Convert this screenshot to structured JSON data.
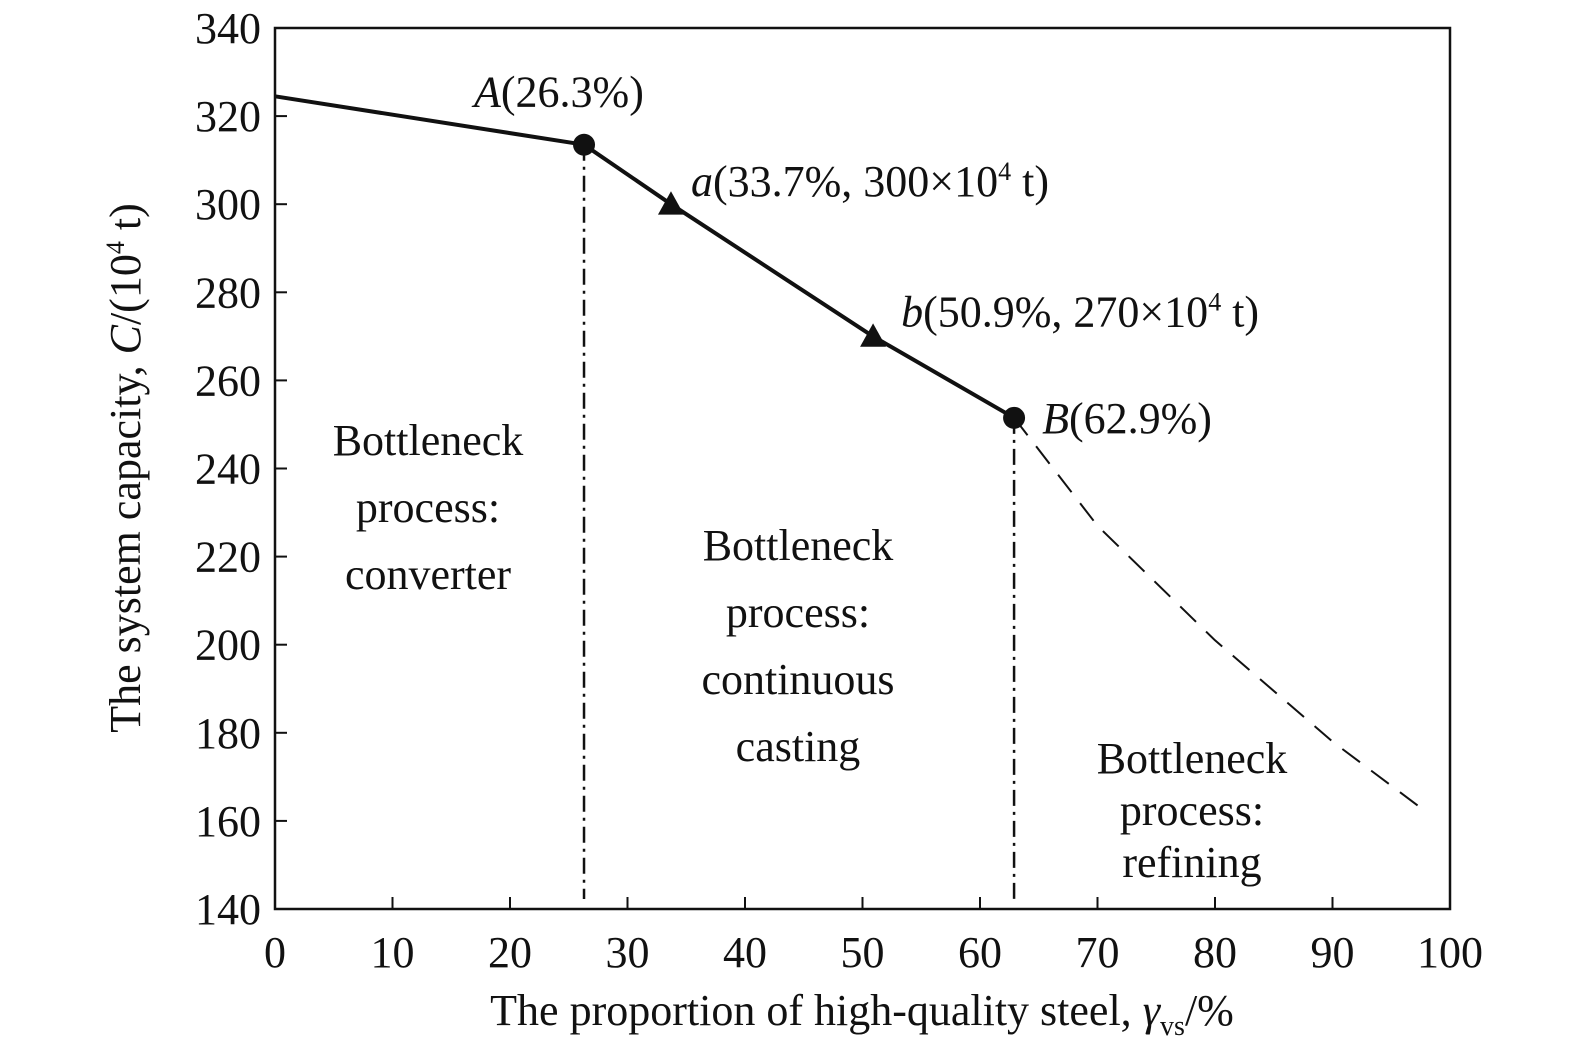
{
  "chart_data": {
    "type": "line",
    "xlabel": {
      "main": "The proportion of high-quality steel, ",
      "var": "γ",
      "sub": "vs",
      "unit": "/%"
    },
    "ylabel": {
      "main": "The system capacity, ",
      "var": "C",
      "unit_a": "/(10",
      "sup": "4",
      "unit_b": " t)"
    },
    "xlim": [
      0,
      100
    ],
    "ylim": [
      140,
      340
    ],
    "xticks": [
      "0",
      "10",
      "20",
      "30",
      "40",
      "50",
      "60",
      "70",
      "80",
      "90",
      "100"
    ],
    "yticks": [
      "140",
      "160",
      "180",
      "200",
      "220",
      "240",
      "260",
      "280",
      "300",
      "320",
      "340"
    ],
    "series": [
      {
        "style": "solid",
        "x": [
          0,
          26.3,
          33.7,
          50.9,
          62.9
        ],
        "y": [
          324.5,
          313.5,
          300,
          270,
          251.5
        ]
      },
      {
        "style": "dashed",
        "x": [
          62.9,
          70,
          80,
          90,
          97.5
        ],
        "y": [
          251.5,
          227,
          201,
          178,
          163
        ]
      }
    ],
    "vlines": [
      {
        "x": 26.3,
        "style": "dash-dot"
      },
      {
        "x": 62.9,
        "style": "dash-dot"
      }
    ],
    "points": [
      {
        "marker": "circle",
        "x": 26.3,
        "y": 313.5,
        "name": "A",
        "label": "(26.3%)"
      },
      {
        "marker": "triangle",
        "x": 33.7,
        "y": 300,
        "name": "a",
        "label": "(33.7%, 300×10",
        "sup": "4",
        "tail": " t)"
      },
      {
        "marker": "triangle",
        "x": 50.9,
        "y": 270,
        "name": "b",
        "label": "(50.9%, 270×10",
        "sup": "4",
        "tail": " t)"
      },
      {
        "marker": "circle",
        "x": 62.9,
        "y": 251.5,
        "name": "B",
        "label": "(62.9%)"
      }
    ],
    "regions": [
      {
        "lines": [
          "Bottleneck",
          "process:",
          "converter"
        ]
      },
      {
        "lines": [
          "Bottleneck",
          "process:",
          "continuous",
          "casting"
        ]
      },
      {
        "lines": [
          "Bottleneck",
          "process:",
          "refining"
        ]
      }
    ]
  }
}
